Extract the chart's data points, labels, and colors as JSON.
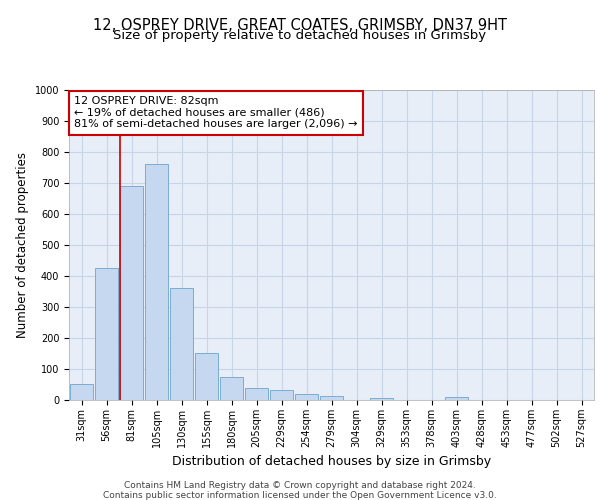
{
  "title_line1": "12, OSPREY DRIVE, GREAT COATES, GRIMSBY, DN37 9HT",
  "title_line2": "Size of property relative to detached houses in Grimsby",
  "xlabel": "Distribution of detached houses by size in Grimsby",
  "ylabel": "Number of detached properties",
  "categories": [
    "31sqm",
    "56sqm",
    "81sqm",
    "105sqm",
    "130sqm",
    "155sqm",
    "180sqm",
    "205sqm",
    "229sqm",
    "254sqm",
    "279sqm",
    "304sqm",
    "329sqm",
    "353sqm",
    "378sqm",
    "403sqm",
    "428sqm",
    "453sqm",
    "477sqm",
    "502sqm",
    "527sqm"
  ],
  "values": [
    52,
    425,
    690,
    760,
    362,
    153,
    75,
    40,
    32,
    18,
    12,
    0,
    8,
    0,
    0,
    10,
    0,
    0,
    0,
    0,
    0
  ],
  "bar_color": "#c5d8f0",
  "bar_edge_color": "#7aadd4",
  "vline_color": "#cc0000",
  "annotation_text": "12 OSPREY DRIVE: 82sqm\n← 19% of detached houses are smaller (486)\n81% of semi-detached houses are larger (2,096) →",
  "annotation_box_color": "#ffffff",
  "annotation_box_edge": "#cc0000",
  "ylim": [
    0,
    1000
  ],
  "yticks": [
    0,
    100,
    200,
    300,
    400,
    500,
    600,
    700,
    800,
    900,
    1000
  ],
  "grid_color": "#c8d4e8",
  "bg_color": "#e8eef8",
  "footer_line1": "Contains HM Land Registry data © Crown copyright and database right 2024.",
  "footer_line2": "Contains public sector information licensed under the Open Government Licence v3.0.",
  "title_fontsize": 10.5,
  "subtitle_fontsize": 9.5,
  "xlabel_fontsize": 9,
  "ylabel_fontsize": 8.5,
  "tick_fontsize": 7,
  "annotation_fontsize": 8,
  "footer_fontsize": 6.5
}
